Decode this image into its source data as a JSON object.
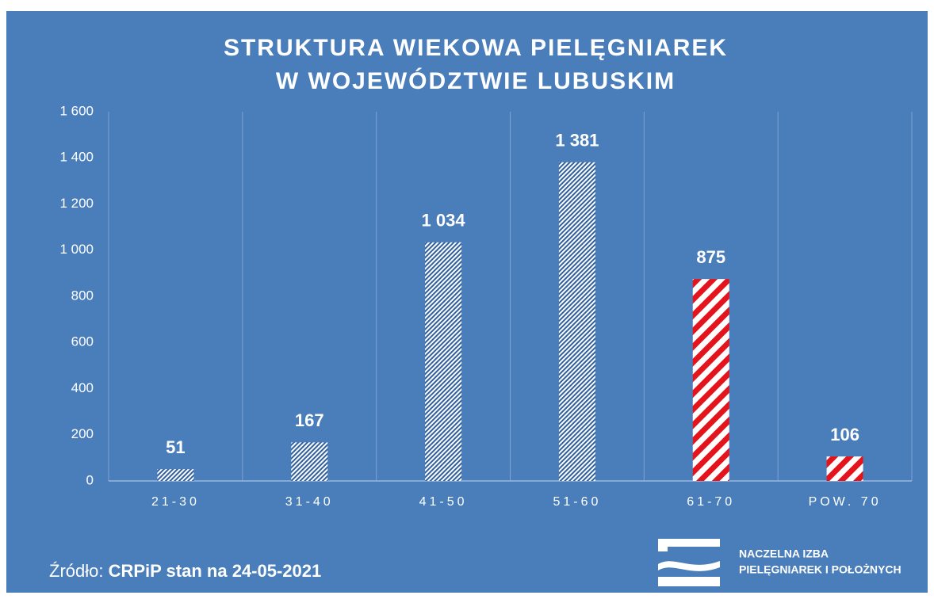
{
  "chart_data": {
    "type": "bar",
    "title": [
      "STRUKTURA WIEKOWA PIELĘGNIAREK",
      "W WOJEWÓDZTWIE LUBUSKIM"
    ],
    "categories": [
      "21-30",
      "31-40",
      "41-50",
      "51-60",
      "61-70",
      "POW. 70"
    ],
    "values": [
      51,
      167,
      1034,
      1381,
      875,
      106
    ],
    "value_labels": [
      "51",
      "167",
      "1 034",
      "1 381",
      "875",
      "106"
    ],
    "colors": [
      "#2f5f9e",
      "#2f5f9e",
      "#2f5f9e",
      "#2f5f9e",
      "#e3141c",
      "#e3141c"
    ],
    "ylim": [
      0,
      1600
    ],
    "yticks": [
      0,
      200,
      400,
      600,
      800,
      {
        "value": 1000,
        "label": "1 000"
      },
      {
        "value": 1200,
        "label": "1 200"
      },
      {
        "value": 1400,
        "label": "1 400"
      },
      {
        "value": 1600,
        "label": "1 600"
      }
    ],
    "grid": true
  },
  "footer": {
    "source_label": "Źródło:",
    "source_text": "CRPiP stan na 24-05-2021",
    "logo_lines": [
      "NACZELNA IZBA",
      "PIELĘGNIAREK I POŁOŻNYCH"
    ]
  }
}
